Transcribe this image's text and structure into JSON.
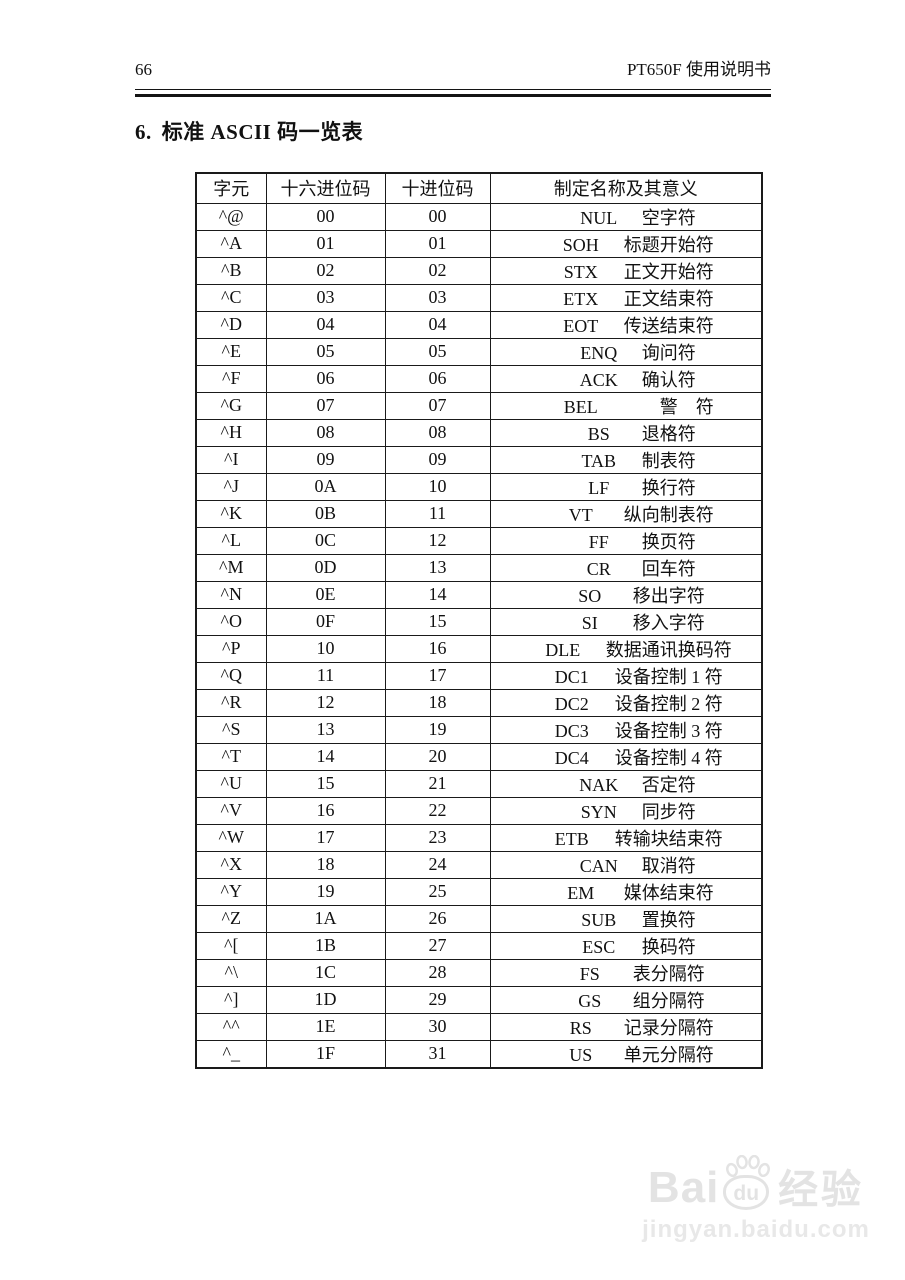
{
  "page": {
    "number": "66",
    "doc_title": "PT650F 使用说明书"
  },
  "section": {
    "number": "6.",
    "title": "标准 ASCII 码一览表"
  },
  "table": {
    "columns": [
      "字元",
      "十六进位码",
      "十进位码",
      "制定名称及其意义"
    ],
    "rows": [
      {
        "char": "^@",
        "hex": "00",
        "dec": "00",
        "code": "NUL",
        "meaning": "空字符"
      },
      {
        "char": "^A",
        "hex": "01",
        "dec": "01",
        "code": "SOH",
        "meaning": "标题开始符"
      },
      {
        "char": "^B",
        "hex": "02",
        "dec": "02",
        "code": "STX",
        "meaning": "正文开始符"
      },
      {
        "char": "^C",
        "hex": "03",
        "dec": "03",
        "code": "ETX",
        "meaning": "正文结束符"
      },
      {
        "char": "^D",
        "hex": "04",
        "dec": "04",
        "code": "EOT",
        "meaning": "传送结束符"
      },
      {
        "char": "^E",
        "hex": "05",
        "dec": "05",
        "code": "ENQ",
        "meaning": "询问符"
      },
      {
        "char": "^F",
        "hex": "06",
        "dec": "06",
        "code": "ACK",
        "meaning": "确认符"
      },
      {
        "char": "^G",
        "hex": "07",
        "dec": "07",
        "code": "BEL",
        "meaning": "　　警　符"
      },
      {
        "char": "^H",
        "hex": "08",
        "dec": "08",
        "code": "BS",
        "meaning": "退格符"
      },
      {
        "char": "^I",
        "hex": "09",
        "dec": "09",
        "code": "TAB",
        "meaning": "制表符"
      },
      {
        "char": "^J",
        "hex": "0A",
        "dec": "10",
        "code": "LF",
        "meaning": "换行符"
      },
      {
        "char": "^K",
        "hex": "0B",
        "dec": "11",
        "code": "VT",
        "meaning": "纵向制表符"
      },
      {
        "char": "^L",
        "hex": "0C",
        "dec": "12",
        "code": "FF",
        "meaning": "换页符"
      },
      {
        "char": "^M",
        "hex": "0D",
        "dec": "13",
        "code": "CR",
        "meaning": "回车符"
      },
      {
        "char": "^N",
        "hex": "0E",
        "dec": "14",
        "code": "SO",
        "meaning": "移出字符"
      },
      {
        "char": "^O",
        "hex": "0F",
        "dec": "15",
        "code": "SI",
        "meaning": "移入字符"
      },
      {
        "char": "^P",
        "hex": "10",
        "dec": "16",
        "code": "DLE",
        "meaning": "数据通讯换码符"
      },
      {
        "char": "^Q",
        "hex": "11",
        "dec": "17",
        "code": "DC1",
        "meaning": "设备控制 1 符"
      },
      {
        "char": "^R",
        "hex": "12",
        "dec": "18",
        "code": "DC2",
        "meaning": "设备控制 2 符"
      },
      {
        "char": "^S",
        "hex": "13",
        "dec": "19",
        "code": "DC3",
        "meaning": "设备控制 3 符"
      },
      {
        "char": "^T",
        "hex": "14",
        "dec": "20",
        "code": "DC4",
        "meaning": "设备控制 4 符"
      },
      {
        "char": "^U",
        "hex": "15",
        "dec": "21",
        "code": "NAK",
        "meaning": "否定符"
      },
      {
        "char": "^V",
        "hex": "16",
        "dec": "22",
        "code": "SYN",
        "meaning": "同步符"
      },
      {
        "char": "^W",
        "hex": "17",
        "dec": "23",
        "code": "ETB",
        "meaning": "转输块结束符"
      },
      {
        "char": "^X",
        "hex": "18",
        "dec": "24",
        "code": "CAN",
        "meaning": "取消符"
      },
      {
        "char": "^Y",
        "hex": "19",
        "dec": "25",
        "code": "EM",
        "meaning": "媒体结束符"
      },
      {
        "char": "^Z",
        "hex": "1A",
        "dec": "26",
        "code": "SUB",
        "meaning": "置换符"
      },
      {
        "char": "^[",
        "hex": "1B",
        "dec": "27",
        "code": "ESC",
        "meaning": "换码符"
      },
      {
        "char": "^\\",
        "hex": "1C",
        "dec": "28",
        "code": "FS",
        "meaning": "表分隔符"
      },
      {
        "char": "^]",
        "hex": "1D",
        "dec": "29",
        "code": "GS",
        "meaning": "组分隔符"
      },
      {
        "char": "^^",
        "hex": "1E",
        "dec": "30",
        "code": "RS",
        "meaning": "记录分隔符"
      },
      {
        "char": "^_",
        "hex": "1F",
        "dec": "31",
        "code": "US",
        "meaning": "单元分隔符"
      }
    ]
  },
  "watermark": {
    "brand_part1": "Bai",
    "brand_part2": "du",
    "brand_cn": "经验",
    "url": "jingyan.baidu.com",
    "color": "#e3e3e3"
  }
}
